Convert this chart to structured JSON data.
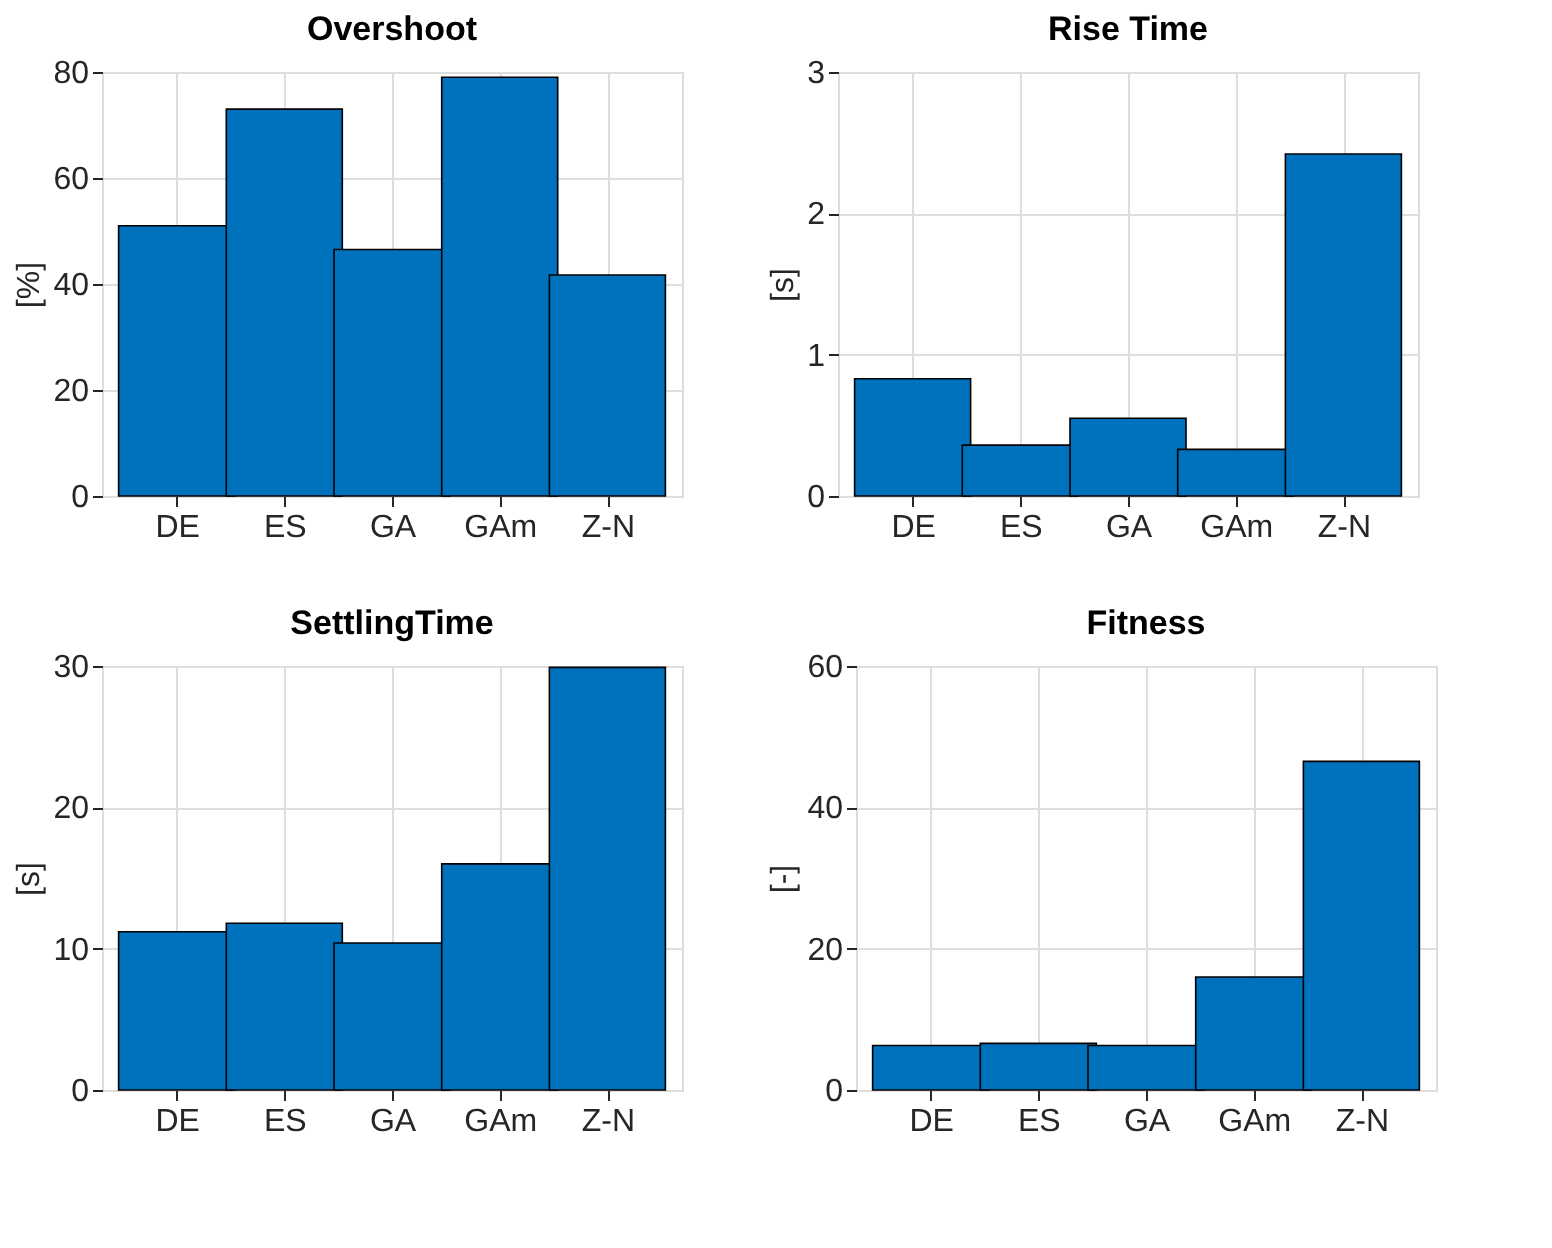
{
  "chart_data": [
    {
      "type": "bar",
      "title": "Overshoot",
      "ylabel": "[%]",
      "categories": [
        "DE",
        "ES",
        "GA",
        "GAm",
        "Z-N"
      ],
      "values": [
        51,
        73,
        46.5,
        79,
        41.7
      ],
      "color": "#0072bd",
      "ylim": [
        0,
        80
      ],
      "yticks": [
        0,
        20,
        40,
        60,
        80
      ],
      "grid": true
    },
    {
      "type": "bar",
      "title": "Rise Time",
      "ylabel": "[s]",
      "categories": [
        "DE",
        "ES",
        "GA",
        "GAm",
        "Z-N"
      ],
      "values": [
        0.83,
        0.36,
        0.55,
        0.33,
        2.42
      ],
      "color": "#0072bd",
      "ylim": [
        0,
        3
      ],
      "yticks": [
        0,
        1,
        2,
        3
      ],
      "grid": true
    },
    {
      "type": "bar",
      "title": "SettlingTime",
      "ylabel": "[s]",
      "categories": [
        "DE",
        "ES",
        "GA",
        "GAm",
        "Z-N"
      ],
      "values": [
        11.2,
        11.8,
        10.4,
        16,
        29.9
      ],
      "color": "#0072bd",
      "ylim": [
        0,
        30
      ],
      "yticks": [
        0,
        10,
        20,
        30
      ],
      "grid": true
    },
    {
      "type": "bar",
      "title": "Fitness",
      "ylabel": "[-]",
      "categories": [
        "DE",
        "ES",
        "GA",
        "GAm",
        "Z-N"
      ],
      "values": [
        6.3,
        6.6,
        6.3,
        16,
        46.5
      ],
      "color": "#0072bd",
      "ylim": [
        0,
        60
      ],
      "yticks": [
        0,
        20,
        40,
        60
      ],
      "grid": true
    }
  ]
}
